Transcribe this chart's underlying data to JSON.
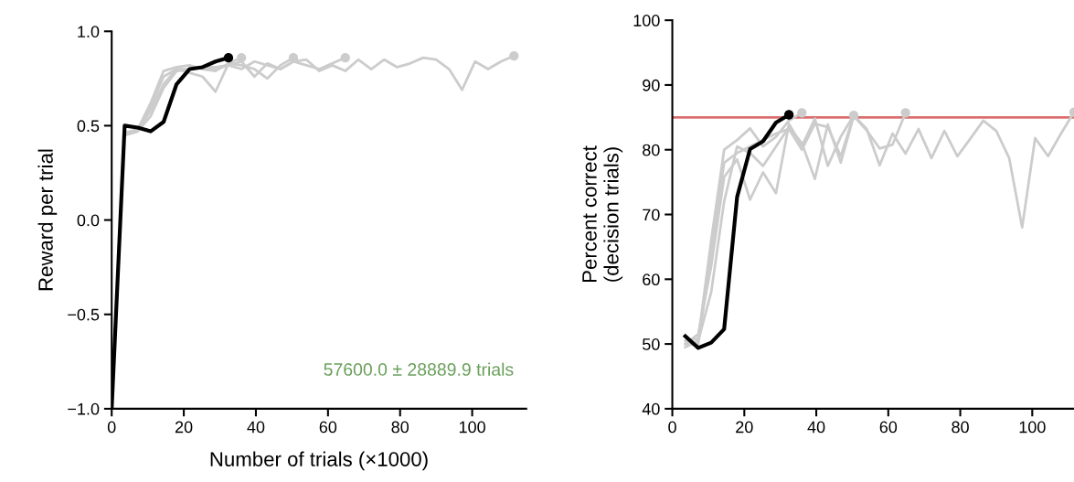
{
  "chart_data": [
    {
      "type": "line",
      "xlabel": "Number of trials (×1000)",
      "ylabel": "Reward per trial",
      "xlim": [
        0,
        115
      ],
      "ylim": [
        -1,
        1
      ],
      "xticks": [
        0,
        20,
        40,
        60,
        80,
        100
      ],
      "yticks": [
        {
          "value": -1,
          "label": "−1.0"
        },
        {
          "value": -0.5,
          "label": "−0.5"
        },
        {
          "value": 0,
          "label": "0.0"
        },
        {
          "value": 0.5,
          "label": "0.5"
        },
        {
          "value": 1,
          "label": "1.0"
        }
      ],
      "grid": false,
      "line_style": "solid",
      "annotations": [
        "57600.0 ± 28889.9 trials"
      ],
      "series": [
        {
          "color": "#cccccc",
          "x": [
            3.6,
            7.2,
            10.8,
            14.4,
            18,
            21.6,
            25.2,
            28.8,
            32.4,
            36,
            39.6,
            43.2,
            46.8,
            50.4,
            54,
            57.6,
            61.2,
            64.8,
            68.4,
            72,
            75.6,
            79.2,
            82.8,
            86.4,
            90,
            93.6,
            97.2,
            100.8,
            104.4,
            108,
            111.6
          ],
          "values": [
            0.46,
            0.48,
            0.6,
            0.76,
            0.8,
            0.8,
            0.81,
            0.81,
            0.82,
            0.8,
            0.84,
            0.82,
            0.8,
            0.84,
            0.85,
            0.79,
            0.82,
            0.79,
            0.85,
            0.8,
            0.85,
            0.81,
            0.83,
            0.86,
            0.85,
            0.8,
            0.69,
            0.84,
            0.8,
            0.84,
            0.87
          ]
        },
        {
          "color": "#cccccc",
          "x": [
            3.6,
            7.2,
            10.8,
            14.4,
            18,
            21.6,
            25.2,
            28.8,
            32.4,
            36,
            39.6,
            43.2,
            46.8,
            50.4,
            54,
            57.6,
            61.2,
            64.8
          ],
          "values": [
            0.45,
            0.47,
            0.55,
            0.7,
            0.79,
            0.8,
            0.81,
            0.8,
            0.82,
            0.84,
            0.76,
            0.83,
            0.8,
            0.84,
            0.82,
            0.8,
            0.83,
            0.86
          ]
        },
        {
          "color": "#cccccc",
          "x": [
            3.6,
            7.2,
            10.8,
            14.4,
            18,
            21.6,
            25.2,
            28.8,
            32.4,
            36,
            39.6,
            43.2,
            46.8,
            50.4
          ],
          "values": [
            0.45,
            0.47,
            0.58,
            0.72,
            0.8,
            0.78,
            0.76,
            0.68,
            0.83,
            0.82,
            0.8,
            0.75,
            0.82,
            0.86
          ]
        },
        {
          "color": "#cccccc",
          "x": [
            3.6,
            7.2,
            10.8,
            14.4,
            18,
            21.6,
            25.2,
            28.8,
            32.4,
            36
          ],
          "values": [
            0.46,
            0.48,
            0.62,
            0.79,
            0.81,
            0.82,
            0.8,
            0.79,
            0.83,
            0.86
          ]
        },
        {
          "color": "#000000",
          "x": [
            0,
            3.6,
            7.2,
            10.8,
            14.4,
            18,
            21.6,
            25.2,
            28.8,
            32.4
          ],
          "values": [
            -1,
            0.5,
            0.49,
            0.47,
            0.52,
            0.72,
            0.8,
            0.81,
            0.84,
            0.86
          ]
        },
        {
          "type": "scatter",
          "marker": "circle",
          "x": [
            111.6,
            64.8,
            50.4,
            36,
            32.4
          ],
          "values": [
            0.87,
            0.86,
            0.86,
            0.86,
            0.86
          ],
          "colors": [
            "#cccccc",
            "#cccccc",
            "#cccccc",
            "#cccccc",
            "#000000"
          ]
        }
      ]
    },
    {
      "type": "line",
      "ylabel": "Percent correct\n(decision trials)",
      "xlim": [
        0,
        111.6
      ],
      "ylim": [
        40,
        100
      ],
      "xticks": [
        0,
        20,
        40,
        60,
        80,
        100
      ],
      "yticks": [
        40,
        50,
        60,
        70,
        80,
        90,
        100
      ],
      "grid": false,
      "line_style": "solid",
      "ref_lines": [
        {
          "axis": "y",
          "value": 85,
          "color": "#d9706f"
        }
      ],
      "series": [
        {
          "color": "#cccccc",
          "x": [
            3.6,
            7.2,
            10.8,
            14.4,
            18,
            21.6,
            25.2,
            28.8,
            32.4,
            36,
            39.6,
            43.2,
            46.8,
            50.4,
            54,
            57.6,
            61.2,
            64.8,
            68.4,
            72,
            75.6,
            79.2,
            82.8,
            86.4,
            90,
            93.6,
            97.2,
            100.8,
            104.4,
            108,
            111.6
          ],
          "values": [
            50.0,
            50.0,
            64,
            78,
            79.5,
            80.5,
            81.5,
            82.5,
            83.2,
            80.0,
            84.0,
            83.5,
            79.0,
            85.3,
            83.2,
            77.6,
            82.5,
            79.4,
            83.2,
            78.7,
            82.9,
            79.0,
            81.7,
            84.5,
            82.9,
            78.7,
            68.0,
            81.8,
            79.0,
            82.5,
            85.8
          ]
        },
        {
          "color": "#cccccc",
          "x": [
            3.6,
            7.2,
            10.8,
            14.4,
            18,
            21.6,
            25.2,
            28.8,
            32.4,
            36,
            39.6,
            43.2,
            46.8,
            50.4,
            54,
            57.6,
            61.2,
            64.8
          ],
          "values": [
            49.5,
            50.5,
            58,
            72,
            80.5,
            79.5,
            77.5,
            80.5,
            83.5,
            81.0,
            75.5,
            83.9,
            78.0,
            85.2,
            83.0,
            80.2,
            80.8,
            85.7
          ]
        },
        {
          "color": "#cccccc",
          "x": [
            3.6,
            7.2,
            10.8,
            14.4,
            18,
            21.6,
            25.2,
            28.8,
            32.4,
            36,
            39.6,
            43.2,
            46.8,
            50.4
          ],
          "values": [
            50.0,
            51.5,
            62,
            75.8,
            78.5,
            72.3,
            76.5,
            73.3,
            84.0,
            80.6,
            84.8,
            77.5,
            82.0,
            85.3
          ]
        },
        {
          "color": "#cccccc",
          "x": [
            3.6,
            7.2,
            10.8,
            14.4,
            18,
            21.6,
            25.2,
            28.8,
            32.4,
            36
          ],
          "values": [
            50.5,
            50.8,
            66,
            80.0,
            81.5,
            83.3,
            80.5,
            82.0,
            84.5,
            85.7
          ]
        },
        {
          "color": "#000000",
          "x": [
            3.6,
            7.2,
            10.8,
            14.4,
            18,
            21.6,
            25.2,
            28.8,
            32.4
          ],
          "values": [
            51.2,
            49.4,
            50.2,
            52.3,
            72.7,
            80.1,
            81.3,
            84.2,
            85.4
          ]
        },
        {
          "type": "scatter",
          "marker": "circle",
          "x": [
            111.6,
            64.8,
            50.4,
            36,
            32.4
          ],
          "values": [
            85.8,
            85.7,
            85.3,
            85.7,
            85.4
          ],
          "colors": [
            "#cccccc",
            "#cccccc",
            "#cccccc",
            "#cccccc",
            "#000000"
          ]
        }
      ]
    }
  ]
}
